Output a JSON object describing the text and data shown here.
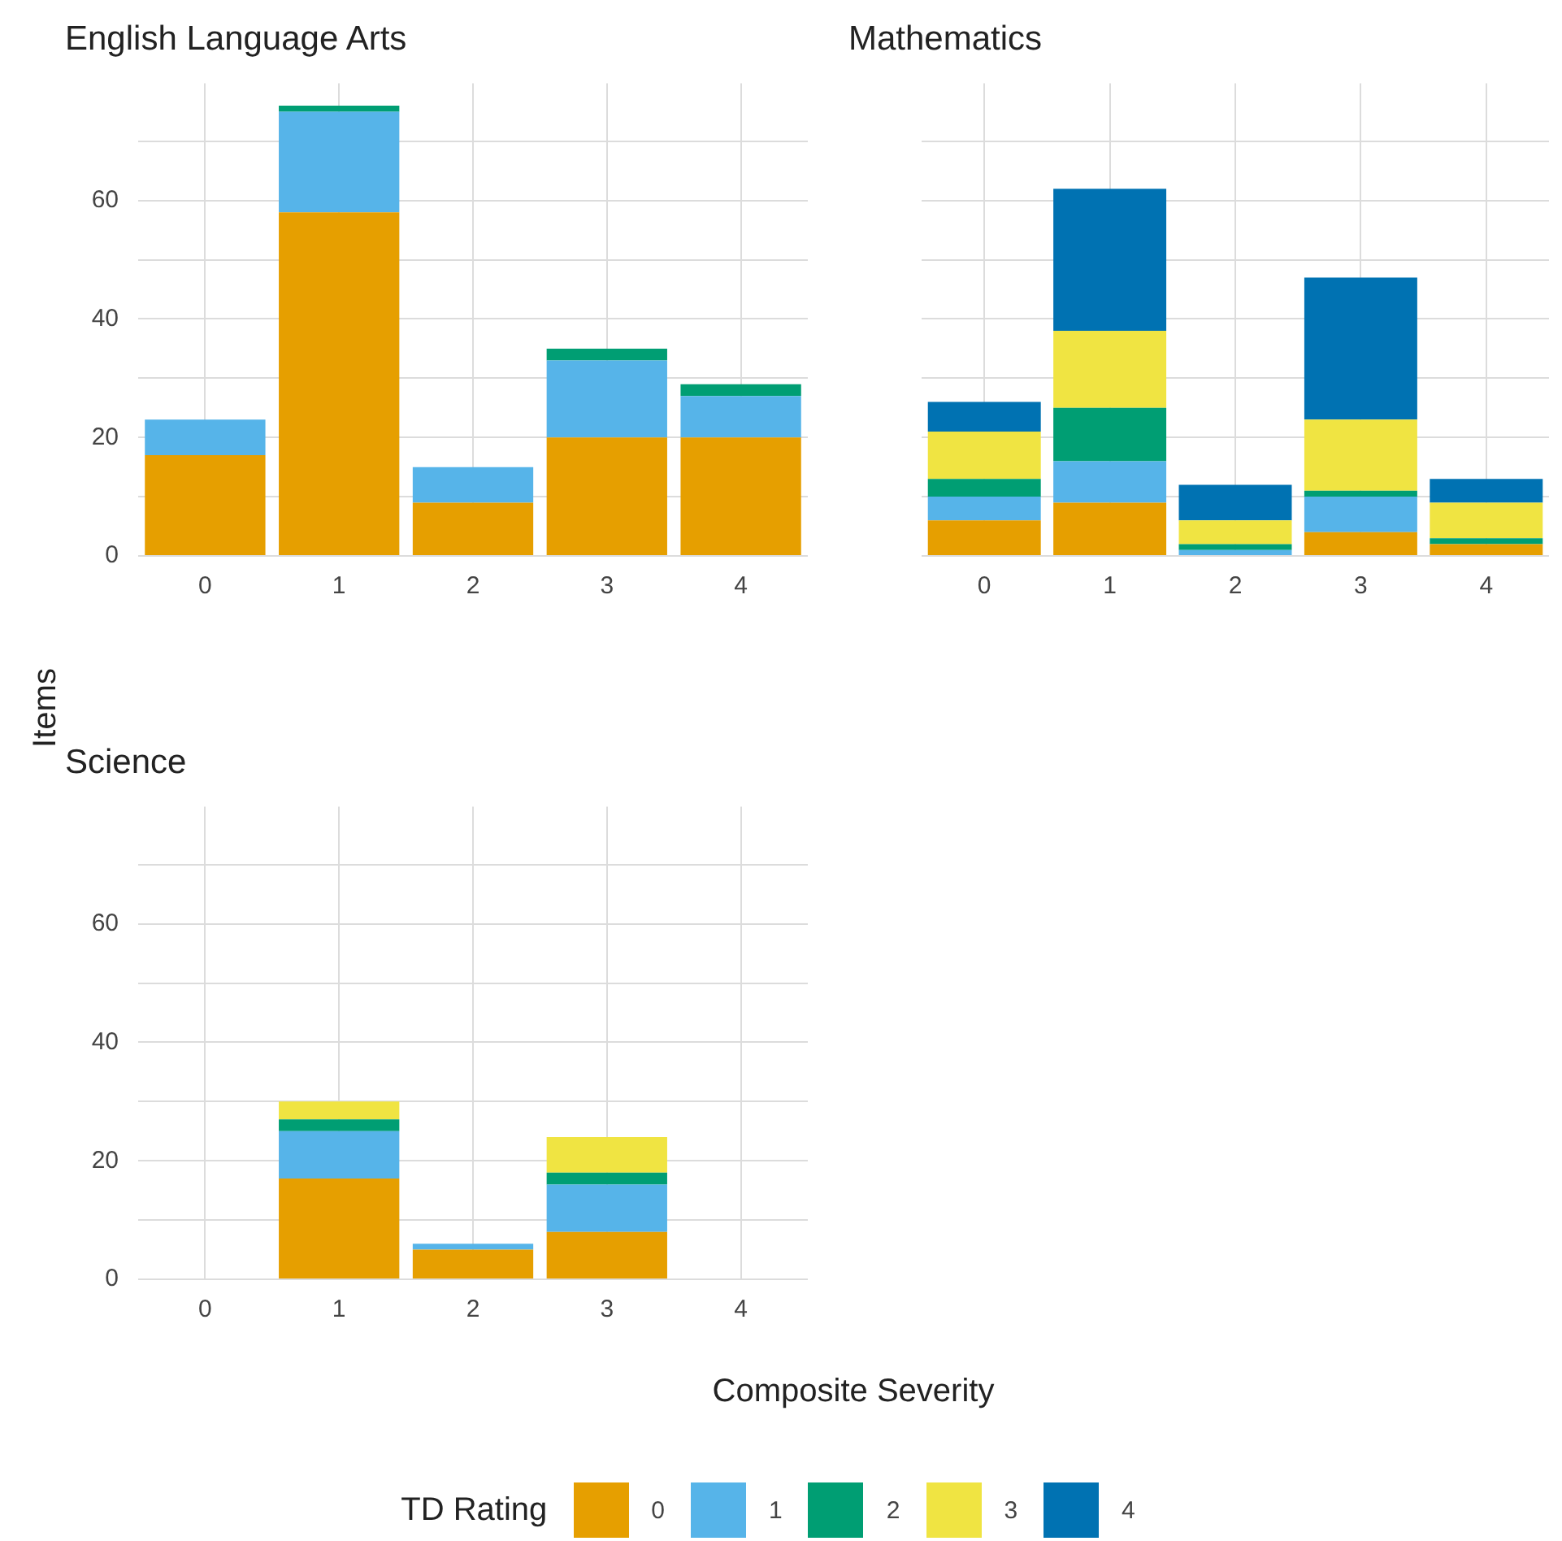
{
  "chart_data": [
    {
      "type": "bar",
      "title": "English Language Arts",
      "categories": [
        "0",
        "1",
        "2",
        "3",
        "4"
      ],
      "stacked": true,
      "grid": true,
      "legend": "bottom",
      "legend_title": "TD Rating",
      "ylim": [
        0,
        79.8
      ],
      "yticks": [
        0,
        {
          "value": 10,
          "label": null
        },
        20,
        {
          "value": 30,
          "label": null
        },
        40,
        {
          "value": 50,
          "label": null
        },
        60,
        {
          "value": 70,
          "label": null
        }
      ],
      "series": [
        {
          "name": "0",
          "color": "#e69f00",
          "values": [
            17,
            58,
            9,
            20,
            20
          ]
        },
        {
          "name": "1",
          "color": "#56b4e9",
          "values": [
            6,
            17,
            6,
            13,
            7
          ]
        },
        {
          "name": "2",
          "color": "#009e73",
          "values": [
            0,
            1,
            0,
            2,
            2
          ]
        },
        {
          "name": "3",
          "color": "#f0e442",
          "values": [
            0,
            0,
            0,
            0,
            0
          ]
        },
        {
          "name": "4",
          "color": "#0072b2",
          "values": [
            0,
            0,
            0,
            0,
            0
          ]
        }
      ]
    },
    {
      "type": "bar",
      "title": "Mathematics",
      "categories": [
        "0",
        "1",
        "2",
        "3",
        "4"
      ],
      "stacked": true,
      "grid": true,
      "tick_labels": "x",
      "ylim": [
        0,
        79.8
      ],
      "yticks": [
        0,
        {
          "value": 10,
          "label": null
        },
        20,
        {
          "value": 30,
          "label": null
        },
        40,
        {
          "value": 50,
          "label": null
        },
        60,
        {
          "value": 70,
          "label": null
        }
      ],
      "series": [
        {
          "color": "#e69f00",
          "values": [
            6,
            9,
            0,
            4,
            2
          ]
        },
        {
          "color": "#56b4e9",
          "values": [
            4,
            7,
            1,
            6,
            0
          ]
        },
        {
          "color": "#009e73",
          "values": [
            3,
            9,
            1,
            1,
            1
          ]
        },
        {
          "color": "#f0e442",
          "values": [
            8,
            13,
            4,
            12,
            6
          ]
        },
        {
          "color": "#0072b2",
          "values": [
            5,
            24,
            6,
            24,
            4
          ]
        }
      ]
    },
    {
      "type": "bar",
      "title": "Science",
      "categories": [
        "0",
        "1",
        "2",
        "3",
        "4"
      ],
      "stacked": true,
      "grid": true,
      "xlabel": "Composite Severity",
      "ylabel": "Items",
      "ylim": [
        0,
        79.8
      ],
      "yticks": [
        0,
        {
          "value": 10,
          "label": null
        },
        20,
        {
          "value": 30,
          "label": null
        },
        40,
        {
          "value": 50,
          "label": null
        },
        60,
        {
          "value": 70,
          "label": null
        }
      ],
      "series": [
        {
          "color": "#e69f00",
          "values": [
            0,
            17,
            5,
            8,
            0
          ]
        },
        {
          "color": "#56b4e9",
          "values": [
            0,
            8,
            1,
            8,
            0
          ]
        },
        {
          "color": "#009e73",
          "values": [
            0,
            2,
            0,
            2,
            0
          ]
        },
        {
          "color": "#f0e442",
          "values": [
            0,
            3,
            0,
            6,
            0
          ]
        },
        {
          "color": "#0072b2",
          "values": [
            0,
            0,
            0,
            0,
            0
          ]
        }
      ]
    }
  ]
}
